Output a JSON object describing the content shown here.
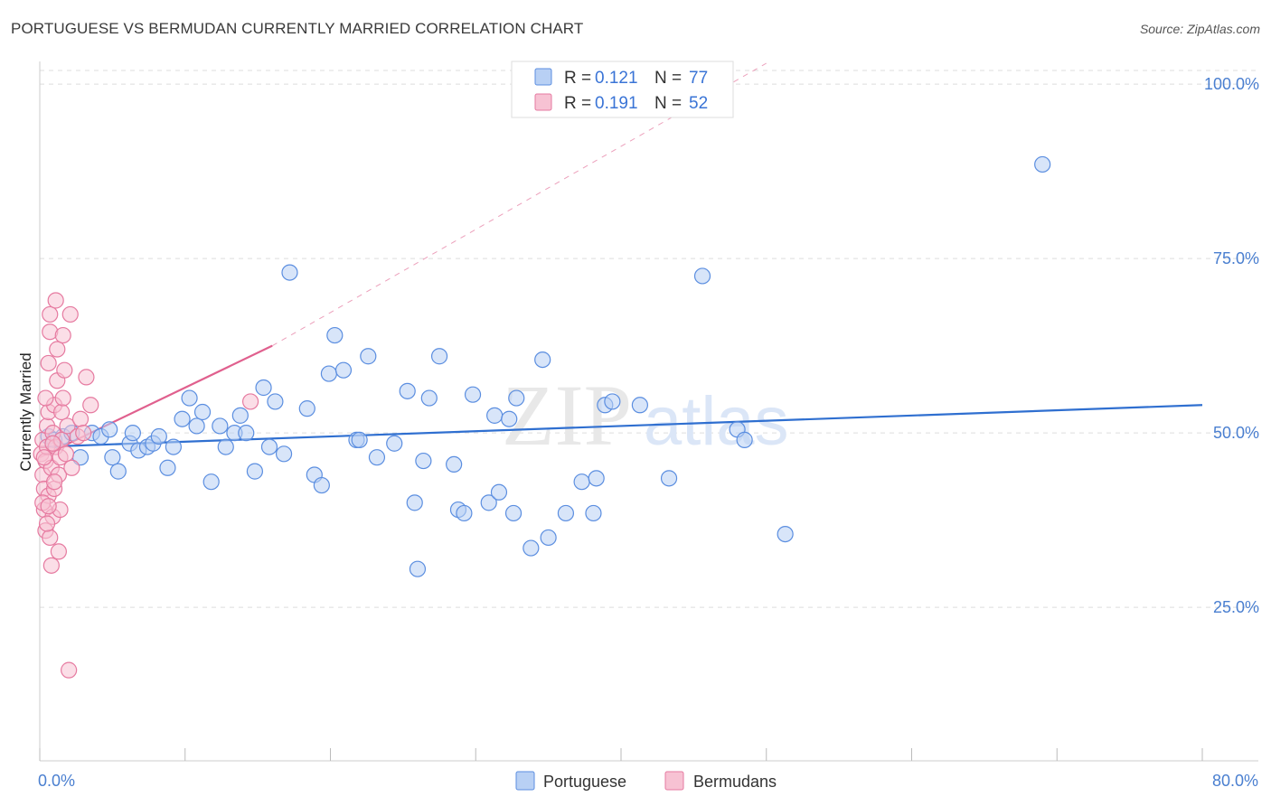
{
  "header": {
    "title": "PORTUGUESE VS BERMUDAN CURRENTLY MARRIED CORRELATION CHART",
    "source": "Source: ZipAtlas.com"
  },
  "watermark": {
    "zip": "ZIP",
    "atlas": "atlas"
  },
  "colors": {
    "blue": "#5b8ee0",
    "blue_fill": "#b8d0f4",
    "blue_line": "#2f6fd0",
    "pink": "#e67aa0",
    "pink_fill": "#f7c2d3",
    "pink_line": "#e0608e",
    "grid": "#dddddd"
  },
  "chart_data": {
    "type": "scatter",
    "xlabel": "",
    "ylabel": "Currently Married",
    "xlim": [
      0,
      80
    ],
    "ylim": [
      3,
      103
    ],
    "x_tick_labels": [
      {
        "value": 0,
        "label": "0.0%"
      },
      {
        "value": 80,
        "label": "80.0%"
      }
    ],
    "y_tick_labels": [
      {
        "value": 25,
        "label": "25.0%"
      },
      {
        "value": 50,
        "label": "50.0%"
      },
      {
        "value": 75,
        "label": "75.0%"
      },
      {
        "value": 100,
        "label": "100.0%"
      }
    ],
    "legend_stats": [
      {
        "r_label": "R = ",
        "r": "0.121",
        "n_label": "N = ",
        "n": "77"
      },
      {
        "r_label": "R = ",
        "r": "0.191",
        "n_label": "N = ",
        "n": "52"
      }
    ],
    "series": [
      {
        "name": "Portuguese",
        "color": "#5b8ee0",
        "trend": {
          "x0": 0,
          "y0": 48.0,
          "x1": 80,
          "y1": 54.0
        },
        "points": [
          [
            0.6,
            49.5
          ],
          [
            1.0,
            49
          ],
          [
            1.6,
            49.5
          ],
          [
            2.2,
            50
          ],
          [
            2.8,
            46.5
          ],
          [
            3.6,
            50
          ],
          [
            4.2,
            49.5
          ],
          [
            4.8,
            50.5
          ],
          [
            5.0,
            46.5
          ],
          [
            5.4,
            44.5
          ],
          [
            6.2,
            48.5
          ],
          [
            6.4,
            50
          ],
          [
            6.8,
            47.5
          ],
          [
            7.4,
            48
          ],
          [
            7.8,
            48.5
          ],
          [
            8.2,
            49.5
          ],
          [
            8.8,
            45
          ],
          [
            9.2,
            48
          ],
          [
            9.8,
            52
          ],
          [
            10.3,
            55
          ],
          [
            10.8,
            51
          ],
          [
            11.2,
            53
          ],
          [
            11.8,
            43
          ],
          [
            12.4,
            51
          ],
          [
            12.8,
            48
          ],
          [
            13.4,
            50
          ],
          [
            13.8,
            52.5
          ],
          [
            14.2,
            50
          ],
          [
            14.8,
            44.5
          ],
          [
            15.4,
            56.5
          ],
          [
            15.8,
            48
          ],
          [
            16.2,
            54.5
          ],
          [
            16.8,
            47
          ],
          [
            17.2,
            73
          ],
          [
            18.4,
            53.5
          ],
          [
            18.9,
            44
          ],
          [
            19.4,
            42.5
          ],
          [
            19.9,
            58.5
          ],
          [
            20.3,
            64
          ],
          [
            20.9,
            59
          ],
          [
            21.8,
            49
          ],
          [
            22.6,
            61
          ],
          [
            23.2,
            46.5
          ],
          [
            24.4,
            48.5
          ],
          [
            25.3,
            56
          ],
          [
            25.8,
            40
          ],
          [
            26.4,
            46
          ],
          [
            26.8,
            55
          ],
          [
            27.5,
            61
          ],
          [
            28.5,
            45.5
          ],
          [
            28.8,
            39
          ],
          [
            29.2,
            38.5
          ],
          [
            29.8,
            55.5
          ],
          [
            30.9,
            40
          ],
          [
            31.3,
            52.5
          ],
          [
            31.6,
            41.5
          ],
          [
            32.3,
            52
          ],
          [
            32.6,
            38.5
          ],
          [
            32.8,
            55
          ],
          [
            33.8,
            33.5
          ],
          [
            34.6,
            60.5
          ],
          [
            35.0,
            35
          ],
          [
            36.2,
            38.5
          ],
          [
            37.3,
            43
          ],
          [
            38.1,
            38.5
          ],
          [
            38.3,
            43.5
          ],
          [
            38.9,
            54
          ],
          [
            39.4,
            54.5
          ],
          [
            41.3,
            54
          ],
          [
            43.3,
            43.5
          ],
          [
            45.6,
            72.5
          ],
          [
            48.0,
            50.5
          ],
          [
            48.5,
            49
          ],
          [
            51.3,
            35.5
          ],
          [
            69.0,
            88.5
          ],
          [
            26.0,
            30.5
          ],
          [
            22.0,
            49
          ]
        ]
      },
      {
        "name": "Bermudans",
        "color": "#e67aa0",
        "trend": {
          "x0": 0,
          "y0": 46.5,
          "x1": 16,
          "y1": 62.5
        },
        "trend_ext": {
          "x0": 16,
          "y0": 62.5,
          "x1": 50,
          "y1": 103
        },
        "points": [
          [
            0.1,
            47
          ],
          [
            0.2,
            44
          ],
          [
            0.2,
            49
          ],
          [
            0.3,
            42
          ],
          [
            0.3,
            39
          ],
          [
            0.4,
            46
          ],
          [
            0.4,
            36
          ],
          [
            0.5,
            51
          ],
          [
            0.5,
            48
          ],
          [
            0.6,
            53
          ],
          [
            0.6,
            41
          ],
          [
            0.6,
            60
          ],
          [
            0.7,
            64.5
          ],
          [
            0.7,
            67
          ],
          [
            0.7,
            35
          ],
          [
            0.8,
            45
          ],
          [
            0.8,
            31
          ],
          [
            0.9,
            38
          ],
          [
            0.9,
            50
          ],
          [
            1.0,
            54
          ],
          [
            1.0,
            42
          ],
          [
            1.1,
            69
          ],
          [
            1.1,
            48
          ],
          [
            1.2,
            57.5
          ],
          [
            1.2,
            62
          ],
          [
            1.3,
            44
          ],
          [
            1.3,
            33
          ],
          [
            1.4,
            46.5
          ],
          [
            1.4,
            39
          ],
          [
            1.5,
            53
          ],
          [
            1.5,
            49
          ],
          [
            1.6,
            64
          ],
          [
            1.6,
            55
          ],
          [
            1.7,
            59
          ],
          [
            1.8,
            47
          ],
          [
            1.9,
            51
          ],
          [
            2.0,
            16
          ],
          [
            2.1,
            67
          ],
          [
            2.2,
            45
          ],
          [
            2.6,
            49.5
          ],
          [
            2.8,
            52
          ],
          [
            3.0,
            50
          ],
          [
            3.2,
            58
          ],
          [
            3.5,
            54
          ],
          [
            0.2,
            40
          ],
          [
            0.4,
            55
          ],
          [
            0.5,
            37
          ],
          [
            1.0,
            43
          ],
          [
            0.3,
            46.5
          ],
          [
            0.6,
            39.5
          ],
          [
            0.9,
            48.5
          ],
          [
            14.5,
            54.5
          ]
        ]
      }
    ]
  }
}
